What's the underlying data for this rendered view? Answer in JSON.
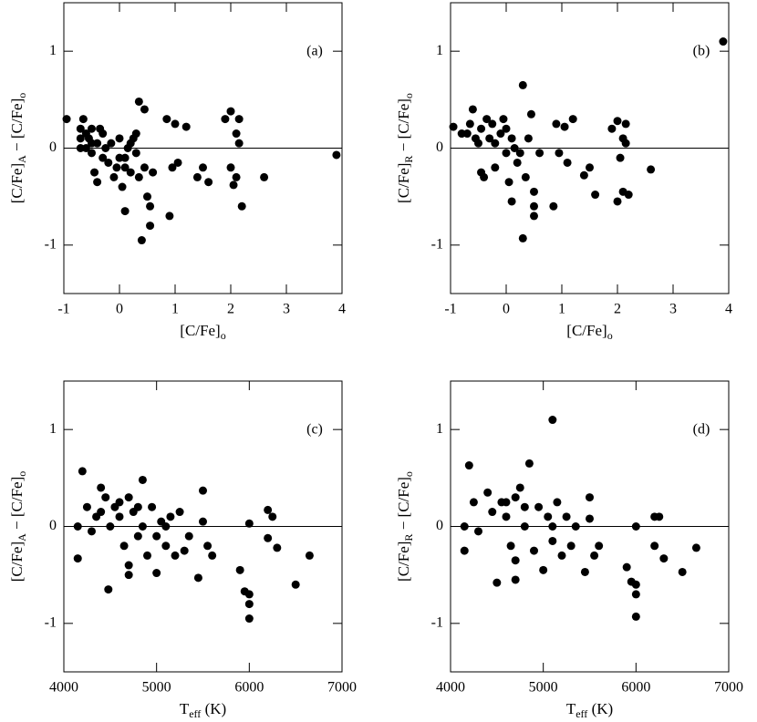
{
  "chart_data": [
    {
      "type": "scatter",
      "annotation": "(a)",
      "xlabel": [
        "[C/Fe]",
        "o"
      ],
      "ylabel": [
        "[C/Fe]",
        "A",
        " − [C/Fe]",
        "o"
      ],
      "xlim": [
        -1,
        4
      ],
      "xticks": [
        -1,
        0,
        1,
        2,
        3,
        4
      ],
      "ylim": [
        -1.5,
        1.5
      ],
      "yticks": [
        -1,
        0,
        1
      ],
      "hline": 0,
      "color": "#000000",
      "x": [
        -0.95,
        -0.7,
        -0.7,
        -0.65,
        -0.6,
        -0.6,
        -0.55,
        -0.5,
        -0.5,
        -0.45,
        -0.4,
        -0.4,
        -0.35,
        -0.3,
        -0.25,
        -0.2,
        -0.15,
        -0.1,
        -0.05,
        0,
        0,
        0.05,
        0.1,
        0.1,
        0.15,
        0.2,
        0.25,
        0.3,
        0.3,
        0.35,
        0.35,
        0.4,
        0.45,
        0.45,
        0.5,
        0.55,
        0.55,
        0.6,
        0.85,
        0.9,
        0.95,
        1.05,
        1.0,
        1.2,
        1.4,
        1.5,
        1.6,
        1.9,
        2.0,
        2.0,
        2.05,
        2.1,
        2.1,
        2.15,
        2.15,
        2.2,
        2.6,
        3.9,
        -0.7,
        -0.3,
        0.2,
        -0.5,
        0.1
      ],
      "values": [
        0.3,
        0.1,
        0.2,
        0.3,
        0.15,
        0.0,
        0.1,
        -0.05,
        0.2,
        -0.25,
        -0.35,
        0.05,
        0.2,
        -0.1,
        0.0,
        -0.15,
        0.05,
        -0.3,
        -0.2,
        0.1,
        -0.1,
        -0.4,
        -0.65,
        -0.2,
        0.0,
        -0.25,
        0.1,
        0.15,
        -0.05,
        0.48,
        -0.3,
        -0.95,
        0.4,
        -0.2,
        -0.5,
        -0.6,
        -0.8,
        -0.25,
        0.3,
        -0.7,
        -0.2,
        -0.15,
        0.25,
        0.22,
        -0.3,
        -0.2,
        -0.35,
        0.3,
        0.38,
        -0.2,
        -0.38,
        0.15,
        -0.3,
        0.05,
        0.3,
        -0.6,
        -0.3,
        -0.07,
        0.0,
        0.15,
        0.05,
        0.05,
        -0.1
      ]
    },
    {
      "type": "scatter",
      "annotation": "(b)",
      "xlabel": [
        "[C/Fe]",
        "o"
      ],
      "ylabel": [
        "[C/Fe]",
        "R",
        " − [C/Fe]",
        "o"
      ],
      "xlim": [
        -1,
        4
      ],
      "xticks": [
        -1,
        0,
        1,
        2,
        3,
        4
      ],
      "ylim": [
        -1.5,
        1.5
      ],
      "yticks": [
        -1,
        0,
        1
      ],
      "hline": 0,
      "color": "#000000",
      "x": [
        -0.95,
        -0.7,
        -0.65,
        -0.6,
        -0.55,
        -0.5,
        -0.45,
        -0.45,
        -0.4,
        -0.35,
        -0.3,
        -0.2,
        -0.2,
        -0.1,
        -0.05,
        0,
        0,
        0.05,
        0.1,
        0.15,
        0.2,
        0.25,
        0.3,
        0.3,
        0.35,
        0.4,
        0.45,
        0.5,
        0.5,
        0.5,
        0.6,
        0.85,
        0.9,
        0.95,
        1.05,
        1.1,
        1.2,
        1.4,
        1.5,
        1.6,
        1.9,
        2.0,
        2.0,
        2.05,
        2.1,
        2.1,
        2.15,
        2.15,
        2.2,
        2.6,
        3.9,
        -0.8,
        -0.25,
        0.1
      ],
      "values": [
        0.22,
        0.15,
        0.25,
        0.4,
        0.1,
        0.05,
        0.2,
        -0.25,
        -0.3,
        0.3,
        0.1,
        0.05,
        -0.2,
        0.15,
        0.3,
        -0.05,
        0.2,
        -0.35,
        -0.55,
        0.0,
        -0.15,
        -0.05,
        0.65,
        -0.93,
        -0.3,
        0.1,
        0.35,
        -0.45,
        -0.6,
        -0.7,
        -0.05,
        -0.6,
        0.25,
        -0.05,
        0.22,
        -0.15,
        0.3,
        -0.28,
        -0.2,
        -0.48,
        0.2,
        0.28,
        -0.55,
        -0.1,
        0.1,
        -0.45,
        0.05,
        0.25,
        -0.48,
        -0.22,
        1.1,
        0.15,
        0.25,
        0.1
      ]
    },
    {
      "type": "scatter",
      "annotation": "(c)",
      "xlabel": [
        "T",
        "eff",
        " (K)"
      ],
      "ylabel": [
        "[C/Fe]",
        "A",
        " − [C/Fe]",
        "o"
      ],
      "xlim": [
        4000,
        7000
      ],
      "xticks": [
        4000,
        5000,
        6000,
        7000
      ],
      "ylim": [
        -1.5,
        1.5
      ],
      "yticks": [
        -1,
        0,
        1
      ],
      "hline": 0,
      "color": "#000000",
      "x": [
        4150,
        4150,
        4200,
        4250,
        4300,
        4350,
        4400,
        4450,
        4480,
        4500,
        4550,
        4600,
        4650,
        4700,
        4700,
        4750,
        4800,
        4850,
        4850,
        4900,
        4950,
        5000,
        5000,
        5050,
        5100,
        5150,
        5200,
        5250,
        5300,
        5350,
        5450,
        5500,
        5500,
        5550,
        5600,
        5900,
        5950,
        6000,
        6000,
        6000,
        6000,
        6200,
        6200,
        6250,
        6300,
        6500,
        6650,
        4600,
        4800,
        5100,
        4400,
        4700
      ],
      "values": [
        -0.33,
        0.0,
        0.57,
        0.2,
        -0.05,
        0.1,
        0.4,
        0.3,
        -0.65,
        0.0,
        0.2,
        0.1,
        -0.2,
        -0.5,
        0.3,
        0.15,
        -0.1,
        0.48,
        0.0,
        -0.3,
        0.2,
        -0.1,
        -0.48,
        0.05,
        -0.2,
        0.1,
        -0.3,
        0.15,
        -0.25,
        -0.1,
        -0.53,
        0.05,
        0.37,
        -0.2,
        -0.3,
        -0.45,
        -0.67,
        -0.7,
        -0.8,
        -0.95,
        0.03,
        0.17,
        -0.12,
        0.1,
        -0.22,
        -0.6,
        -0.3,
        0.25,
        0.2,
        0.0,
        0.15,
        -0.4
      ]
    },
    {
      "type": "scatter",
      "annotation": "(d)",
      "xlabel": [
        "T",
        "eff",
        " (K)"
      ],
      "ylabel": [
        "[C/Fe]",
        "R",
        " − [C/Fe]",
        "o"
      ],
      "xlim": [
        4000,
        7000
      ],
      "xticks": [
        4000,
        5000,
        6000,
        7000
      ],
      "ylim": [
        -1.5,
        1.5
      ],
      "yticks": [
        -1,
        0,
        1
      ],
      "hline": 0,
      "color": "#000000",
      "x": [
        4150,
        4150,
        4200,
        4250,
        4300,
        4400,
        4450,
        4500,
        4550,
        4600,
        4650,
        4700,
        4700,
        4750,
        4800,
        4850,
        4900,
        4950,
        5000,
        5050,
        5100,
        5100,
        5150,
        5200,
        5250,
        5300,
        5350,
        5450,
        5500,
        5500,
        5550,
        5600,
        5900,
        5950,
        6000,
        6000,
        6000,
        6000,
        6200,
        6200,
        6250,
        6300,
        6500,
        6650,
        4600,
        4800,
        5100,
        4700
      ],
      "values": [
        -0.25,
        0.0,
        0.63,
        0.25,
        -0.05,
        0.35,
        0.15,
        -0.58,
        0.25,
        0.1,
        -0.2,
        -0.55,
        0.3,
        0.4,
        0.0,
        0.65,
        -0.25,
        0.2,
        -0.45,
        0.1,
        1.1,
        -0.15,
        0.25,
        -0.3,
        0.1,
        -0.2,
        0.0,
        -0.47,
        0.3,
        0.08,
        -0.3,
        -0.2,
        -0.42,
        -0.57,
        -0.6,
        -0.7,
        -0.93,
        0.0,
        0.1,
        -0.2,
        0.1,
        -0.33,
        -0.47,
        -0.22,
        0.25,
        0.2,
        0.0,
        -0.35
      ]
    }
  ]
}
